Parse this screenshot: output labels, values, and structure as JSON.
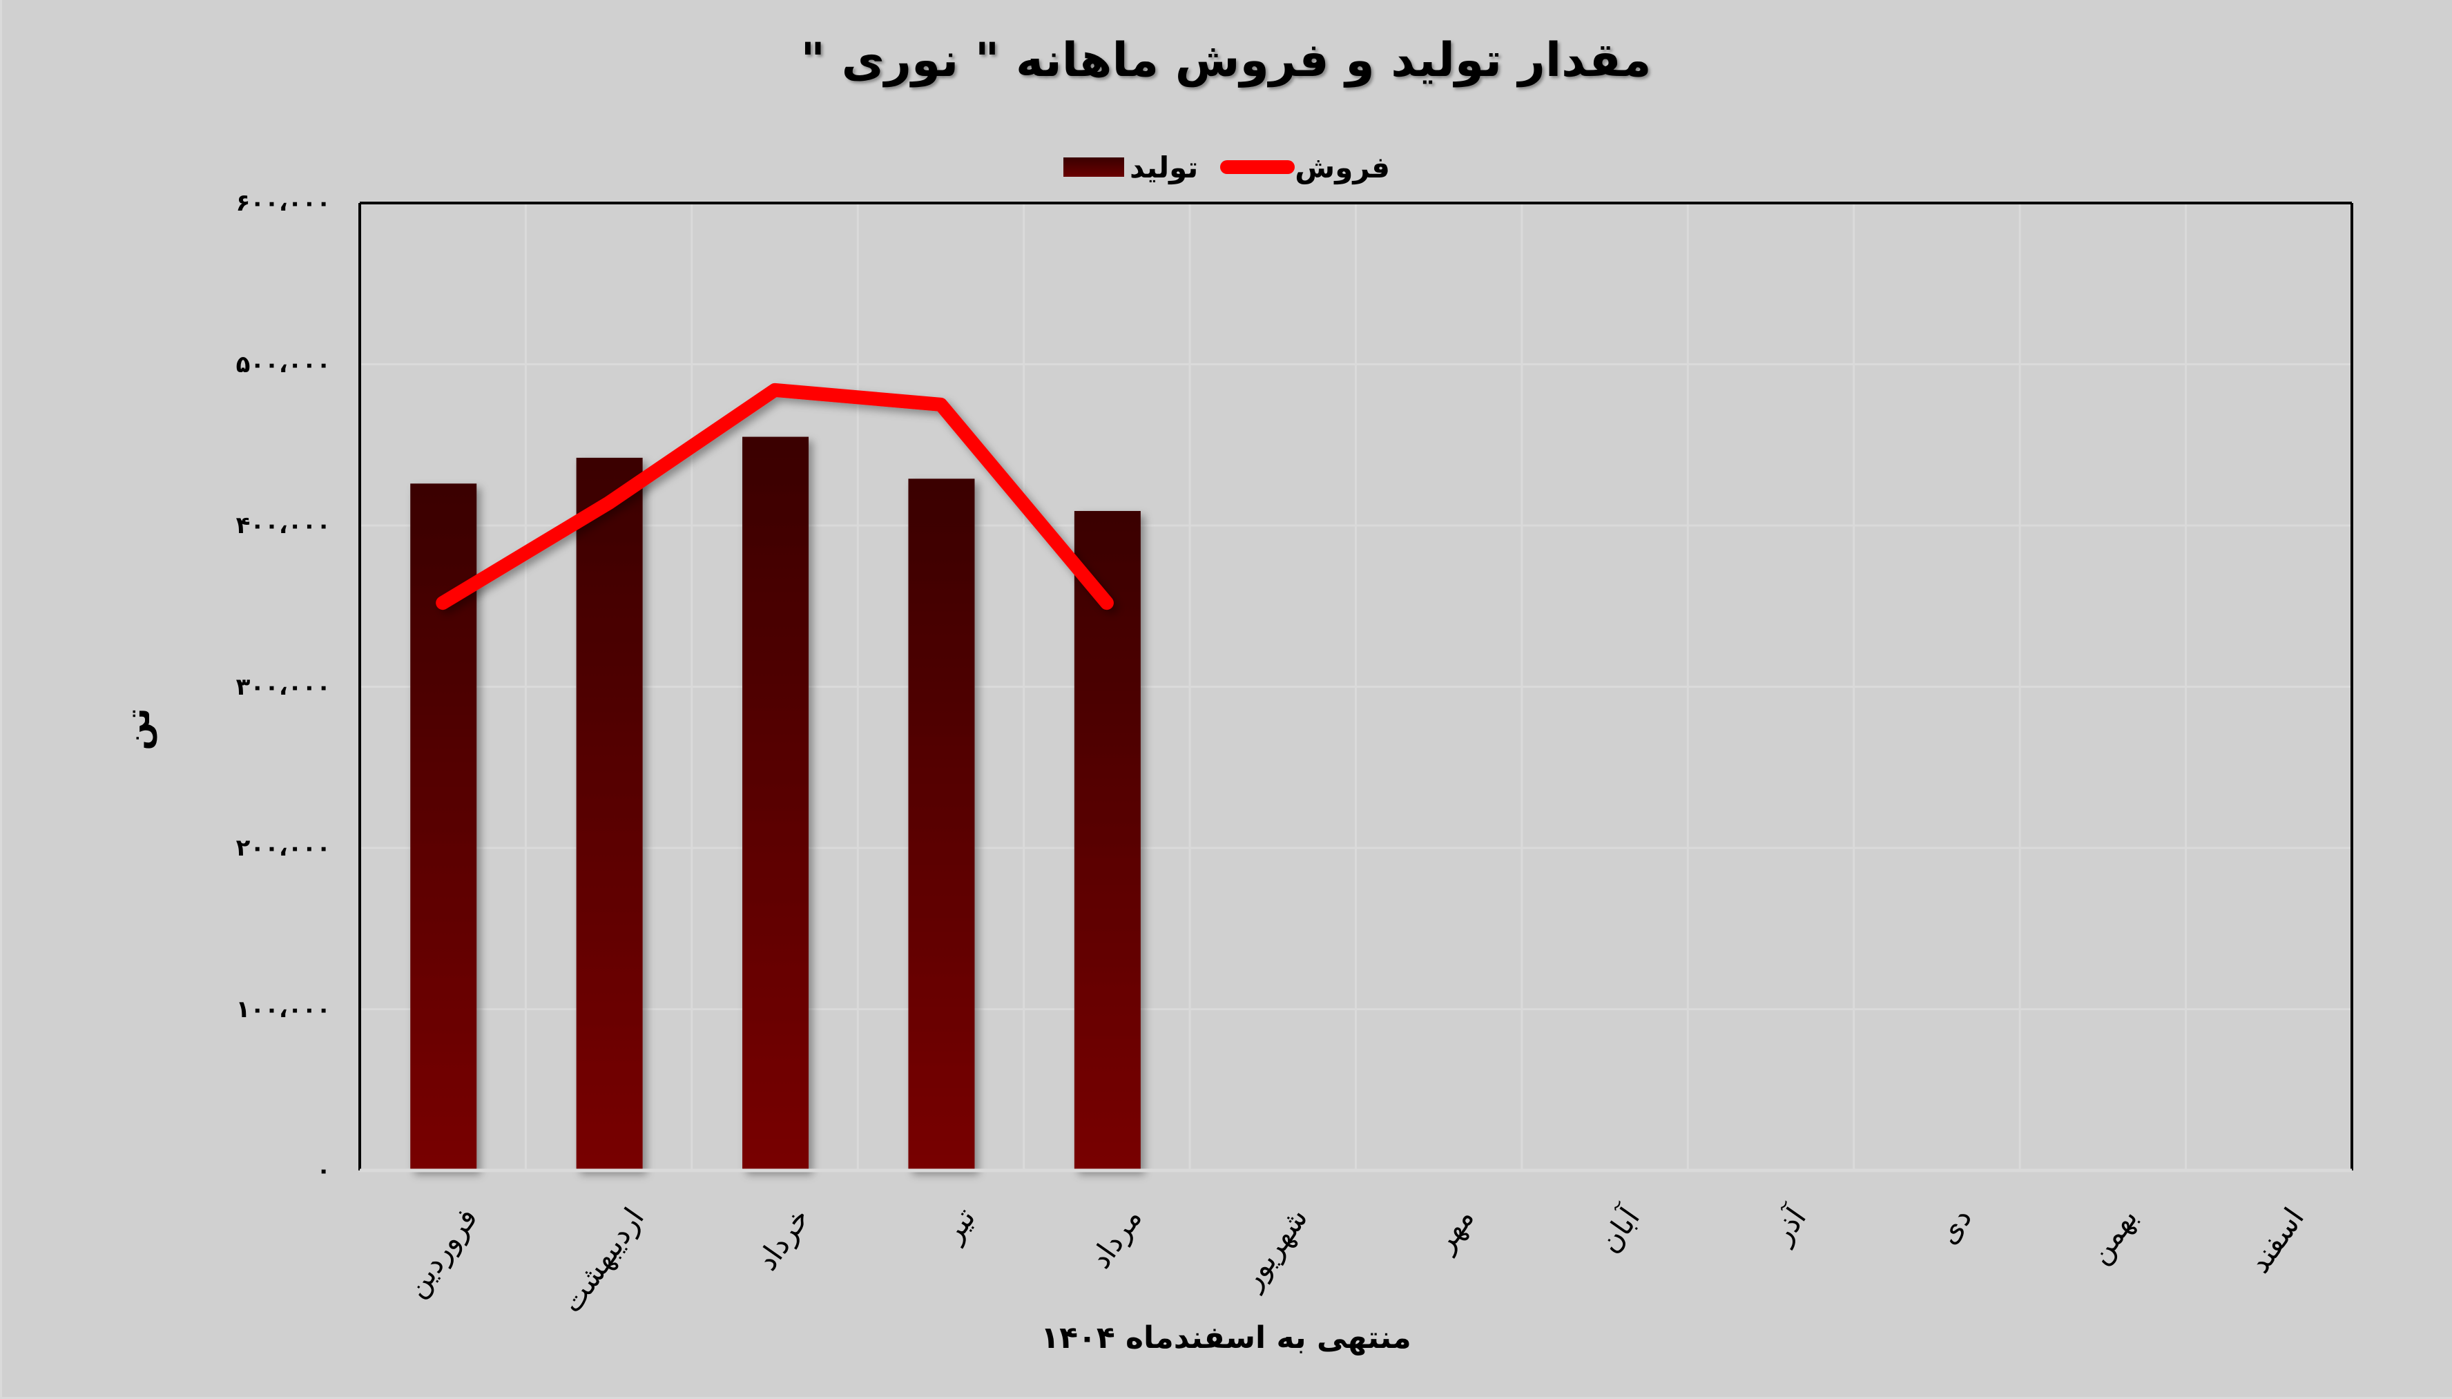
{
  "chart_data": {
    "type": "bar",
    "title": "مقدار تولید و فروش ماهانه \" نوری \"",
    "xlabel": "منتهی به اسفندماه ۱۴۰۴",
    "ylabel": "تن",
    "ylim": [
      0,
      600000
    ],
    "yticks": [
      0,
      100000,
      200000,
      300000,
      400000,
      500000,
      600000
    ],
    "ytick_labels": [
      "۰",
      "۱۰۰،۰۰۰",
      "۲۰۰،۰۰۰",
      "۳۰۰،۰۰۰",
      "۴۰۰،۰۰۰",
      "۵۰۰،۰۰۰",
      "۶۰۰،۰۰۰"
    ],
    "categories": [
      "فروردین",
      "اردیبهشت",
      "خرداد",
      "تیر",
      "مرداد",
      "شهریور",
      "مهر",
      "آبان",
      "آذر",
      "دی",
      "بهمن",
      "اسفند"
    ],
    "series": [
      {
        "name": "تولید",
        "type": "bar",
        "color_top": "#3a0000",
        "color_bottom": "#780000",
        "values": [
          426000,
          442000,
          455000,
          429000,
          409000,
          null,
          null,
          null,
          null,
          null,
          null,
          null
        ]
      },
      {
        "name": "فروش",
        "type": "line",
        "color": "#ff0000",
        "values": [
          352000,
          414000,
          484000,
          475000,
          352000,
          null,
          null,
          null,
          null,
          null,
          null,
          null
        ]
      }
    ],
    "legend_position": "top",
    "grid": true
  },
  "colors": {
    "background": "#d0d0d0",
    "gridline": "#dadada",
    "axis": "#000000",
    "sales_line": "#ff0000"
  }
}
